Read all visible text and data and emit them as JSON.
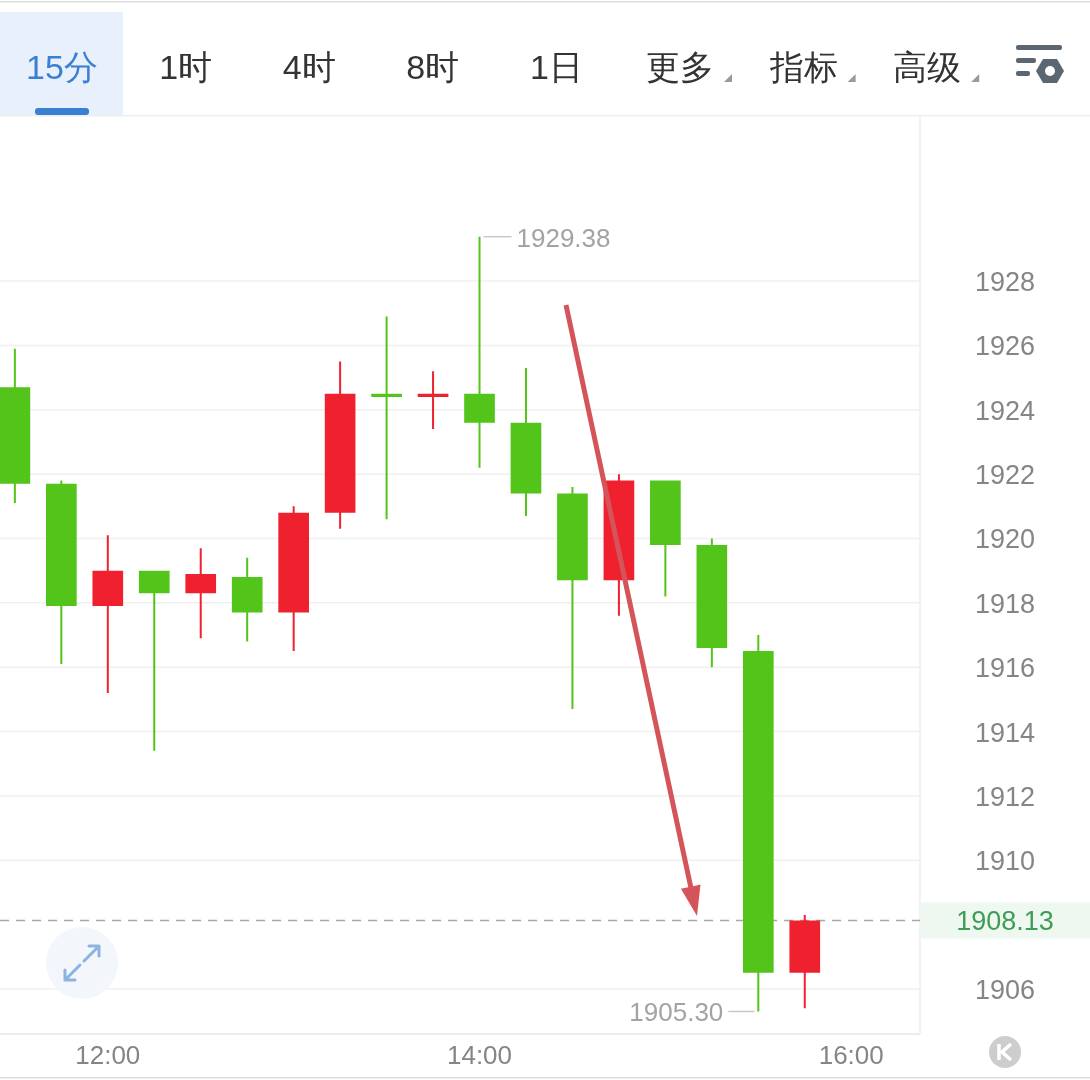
{
  "chart_data": {
    "type": "candlestick",
    "x": [
      11.5,
      11.75,
      12,
      12.25,
      12.5,
      12.75,
      13,
      13.25,
      13.5,
      13.75,
      14,
      14.25,
      14.5,
      14.75,
      15,
      15.25,
      15.5,
      15.75
    ],
    "ohlc": [
      [
        1924.7,
        1925.9,
        1921.1,
        1921.7
      ],
      [
        1921.7,
        1921.8,
        1916.1,
        1917.9
      ],
      [
        1917.9,
        1920.1,
        1915.2,
        1919.0
      ],
      [
        1919.0,
        1919.0,
        1913.4,
        1918.3
      ],
      [
        1918.3,
        1919.7,
        1916.9,
        1918.9
      ],
      [
        1918.8,
        1919.4,
        1916.8,
        1917.7
      ],
      [
        1917.7,
        1921.0,
        1916.5,
        1920.8
      ],
      [
        1920.8,
        1925.5,
        1920.3,
        1924.5
      ],
      [
        1924.5,
        1926.9,
        1920.6,
        1924.4
      ],
      [
        1924.4,
        1925.2,
        1923.4,
        1924.5
      ],
      [
        1924.5,
        1929.38,
        1922.2,
        1923.6
      ],
      [
        1923.6,
        1925.3,
        1920.7,
        1921.4
      ],
      [
        1921.4,
        1921.6,
        1914.7,
        1918.7
      ],
      [
        1918.7,
        1922.0,
        1917.6,
        1921.8
      ],
      [
        1921.8,
        1921.8,
        1918.2,
        1919.8
      ],
      [
        1919.8,
        1920.0,
        1916.0,
        1916.6
      ],
      [
        1916.5,
        1917.0,
        1905.3,
        1906.5
      ],
      [
        1906.5,
        1908.3,
        1905.4,
        1908.13
      ]
    ],
    "colors": [
      "#52c41a",
      "#52c41a",
      "#f0212e",
      "#52c41a",
      "#f0212e",
      "#52c41a",
      "#f0212e",
      "#f0212e",
      "#52c41a",
      "#f0212e",
      "#52c41a",
      "#52c41a",
      "#52c41a",
      "#f0212e",
      "#52c41a",
      "#52c41a",
      "#52c41a",
      "#f0212e"
    ],
    "xlim": [
      11.42,
      16.37
    ],
    "xticks": [
      {
        "value": 12,
        "label": "12:00"
      },
      {
        "value": 14,
        "label": "14:00"
      },
      {
        "value": 16,
        "label": "16:00"
      }
    ],
    "ylim": [
      1904.6,
      1933.1
    ],
    "yticks": [
      1906,
      1910,
      1912,
      1914,
      1916,
      1918,
      1920,
      1922,
      1924,
      1926,
      1928
    ],
    "grid": "y",
    "ref_lines": [
      {
        "axis": "y",
        "value": 1908.13,
        "label": "1908.13",
        "color": "#a8a8a8",
        "line_style": "dashed"
      }
    ],
    "annotations": [
      "15分",
      "1时",
      "4时",
      "8时",
      "1日",
      "更多",
      "指标",
      "高级",
      {
        "text": "1929.38",
        "x": 14,
        "y": 1929.38
      },
      {
        "text": "1905.30",
        "x": 15.5,
        "y": 1905.3
      }
    ]
  }
}
